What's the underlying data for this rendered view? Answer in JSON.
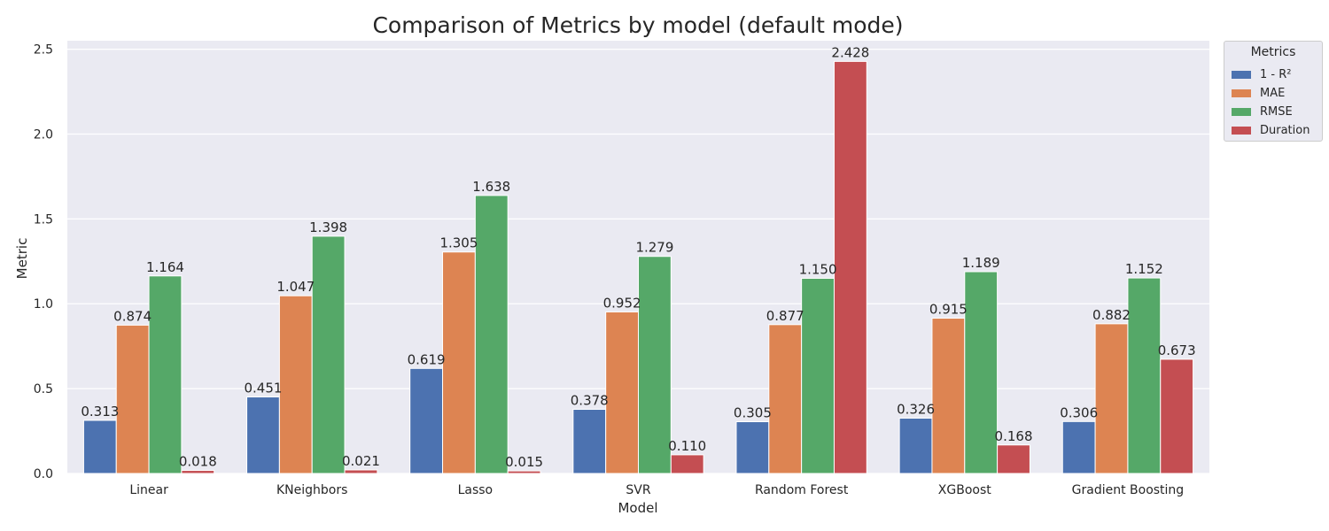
{
  "chart_data": {
    "type": "bar",
    "title": "Comparison of Metrics by model (default mode)",
    "xlabel": "Model",
    "ylabel": "Metric",
    "categories": [
      "Linear",
      "KNeighbors",
      "Lasso",
      "SVR",
      "Random Forest",
      "XGBoost",
      "Gradient Boosting"
    ],
    "series": [
      {
        "name": "1 - R²",
        "color": "#4c72b0",
        "values": [
          0.313,
          0.451,
          0.619,
          0.378,
          0.305,
          0.326,
          0.306
        ],
        "labels": [
          "0.313",
          "0.451",
          "0.619",
          "0.378",
          "0.305",
          "0.326",
          "0.306"
        ]
      },
      {
        "name": "MAE",
        "color": "#dd8452",
        "values": [
          0.874,
          1.047,
          1.305,
          0.952,
          0.877,
          0.915,
          0.882
        ],
        "labels": [
          "0.874",
          "1.047",
          "1.305",
          "0.952",
          "0.877",
          "0.915",
          "0.882"
        ]
      },
      {
        "name": "RMSE",
        "color": "#55a868",
        "values": [
          1.164,
          1.398,
          1.638,
          1.279,
          1.15,
          1.189,
          1.152
        ],
        "labels": [
          "1.164",
          "1.398",
          "1.638",
          "1.279",
          "1.150",
          "1.189",
          "1.152"
        ]
      },
      {
        "name": "Duration",
        "color": "#c44e52",
        "values": [
          0.018,
          0.021,
          0.015,
          0.11,
          2.428,
          0.168,
          0.673
        ],
        "labels": [
          "0.018",
          "0.021",
          "0.015",
          "0.110",
          "2.428",
          "0.168",
          "0.673"
        ]
      }
    ],
    "ylim": [
      0,
      2.55
    ],
    "yticks": [
      0.0,
      0.5,
      1.0,
      1.5,
      2.0,
      2.5
    ],
    "ytick_labels": [
      "0.0",
      "0.5",
      "1.0",
      "1.5",
      "2.0",
      "2.5"
    ],
    "grid": true,
    "legend": {
      "title": "Metrics",
      "placement": "outside-top-right"
    }
  }
}
